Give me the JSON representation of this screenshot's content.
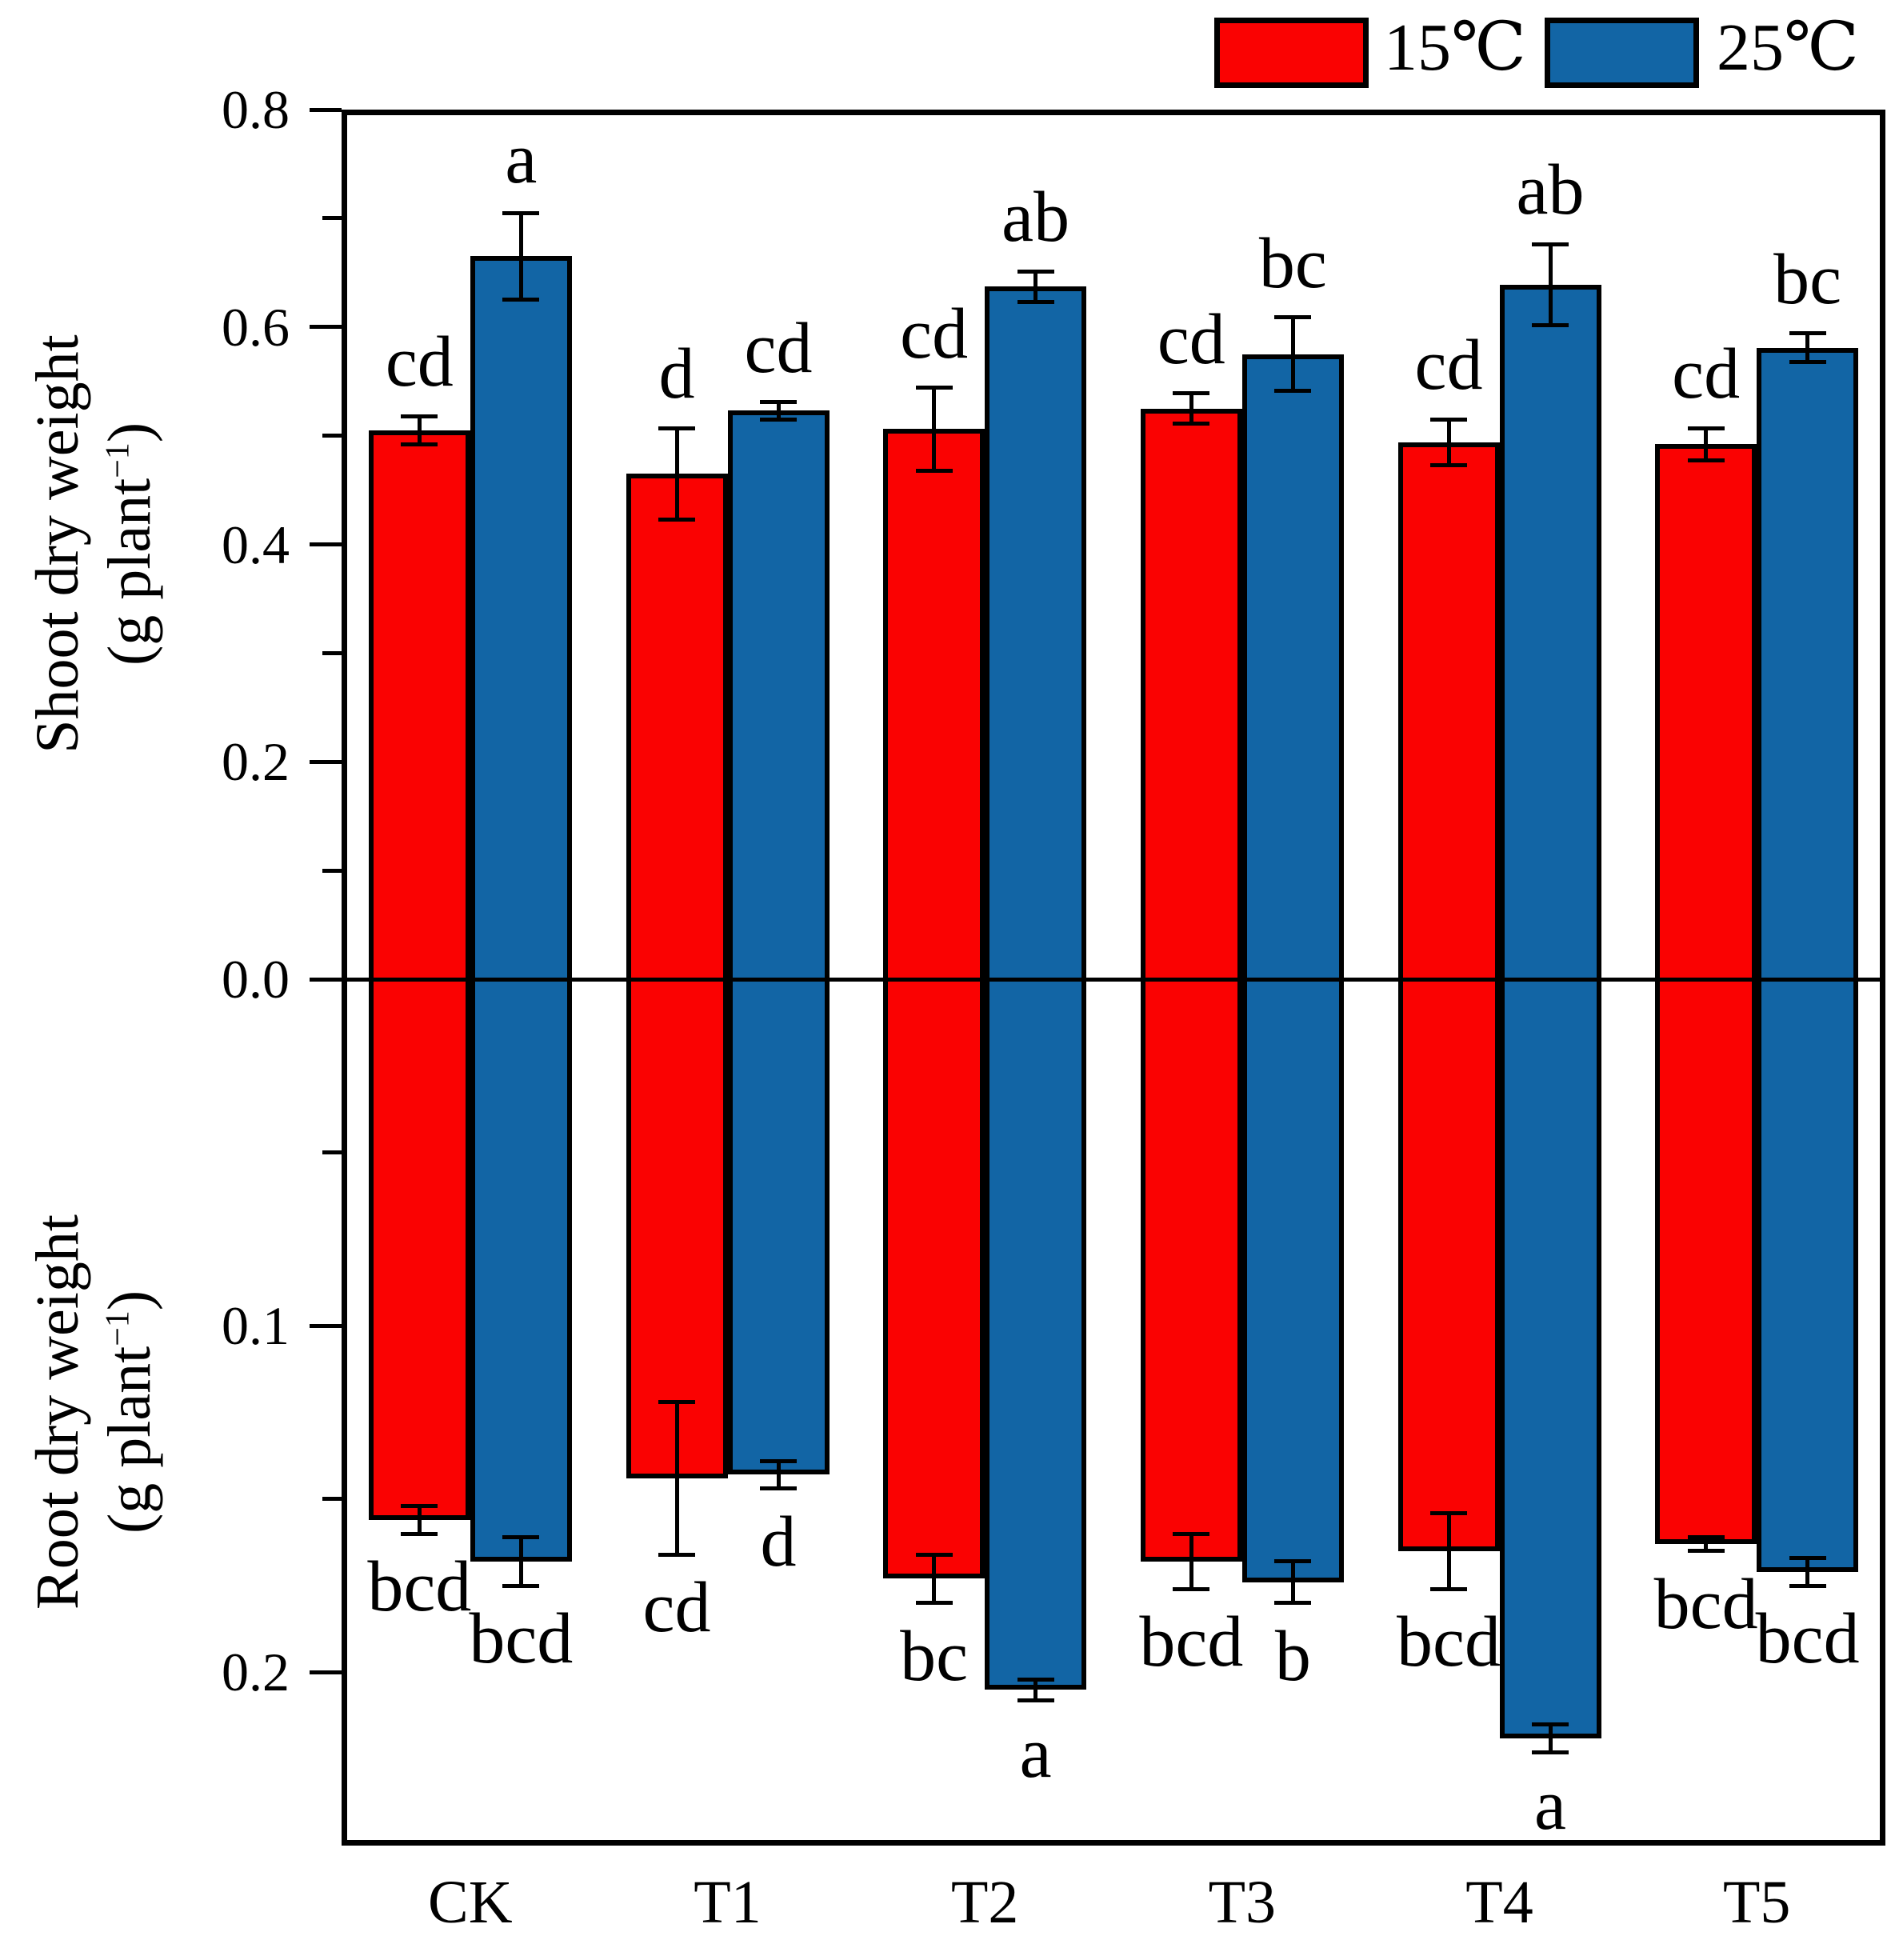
{
  "legend": {
    "items": [
      {
        "label": "15℃",
        "color": "#fa0202"
      },
      {
        "label": "25℃",
        "color": "#1265a5"
      }
    ]
  },
  "axes": {
    "top": {
      "title": "Shoot dry weight",
      "unit_prefix": "(g plant",
      "unit_sup": "−1",
      "unit_suffix": ")",
      "major_ticks": [
        {
          "v": 0.0,
          "label": "0.0"
        },
        {
          "v": 0.2,
          "label": "0.2"
        },
        {
          "v": 0.4,
          "label": "0.4"
        },
        {
          "v": 0.6,
          "label": "0.6"
        },
        {
          "v": 0.8,
          "label": "0.8"
        }
      ],
      "minor_ticks": [
        0.1,
        0.3,
        0.5,
        0.7
      ],
      "max": 0.8
    },
    "bottom": {
      "title": "Root dry weight",
      "unit_prefix": "(g plant",
      "unit_sup": "−1",
      "unit_suffix": ")",
      "major_ticks": [
        {
          "v": 0.1,
          "label": "0.1"
        },
        {
          "v": 0.2,
          "label": "0.2"
        }
      ],
      "minor_ticks": [
        0.05,
        0.15
      ],
      "max": 0.25
    }
  },
  "chart_data": {
    "type": "bar",
    "layout_note": "diverging vertical bars: shoot dry weight plotted upward from zero, root dry weight plotted downward from zero",
    "categories": [
      "CK",
      "T1",
      "T2",
      "T3",
      "T4",
      "T5"
    ],
    "shoot_ylim": [
      0,
      0.8
    ],
    "root_ylim": [
      0,
      0.25
    ],
    "series": [
      {
        "name": "15℃",
        "color": "#fa0202",
        "shoot": {
          "values": [
            0.505,
            0.465,
            0.506,
            0.525,
            0.494,
            0.492
          ],
          "errors": [
            0.013,
            0.042,
            0.038,
            0.014,
            0.021,
            0.015
          ],
          "letters": [
            "cd",
            "d",
            "cd",
            "cd",
            "cd",
            "cd"
          ]
        },
        "root": {
          "values": [
            0.156,
            0.144,
            0.173,
            0.168,
            0.165,
            0.163
          ],
          "errors": [
            0.004,
            0.022,
            0.007,
            0.008,
            0.011,
            0.002
          ],
          "letters": [
            "bcd",
            "cd",
            "bc",
            "bcd",
            "bcd",
            "bcd"
          ]
        }
      },
      {
        "name": "25℃",
        "color": "#1265a5",
        "shoot": {
          "values": [
            0.665,
            0.523,
            0.637,
            0.575,
            0.639,
            0.581
          ],
          "errors": [
            0.04,
            0.008,
            0.014,
            0.034,
            0.037,
            0.013
          ],
          "letters": [
            "a",
            "cd",
            "ab",
            "bc",
            "ab",
            "bc"
          ]
        },
        "root": {
          "values": [
            0.168,
            0.143,
            0.205,
            0.174,
            0.219,
            0.171
          ],
          "errors": [
            0.007,
            0.004,
            0.003,
            0.006,
            0.004,
            0.004
          ],
          "letters": [
            "bcd",
            "d",
            "a",
            "b",
            "a",
            "bcd"
          ]
        }
      }
    ]
  }
}
